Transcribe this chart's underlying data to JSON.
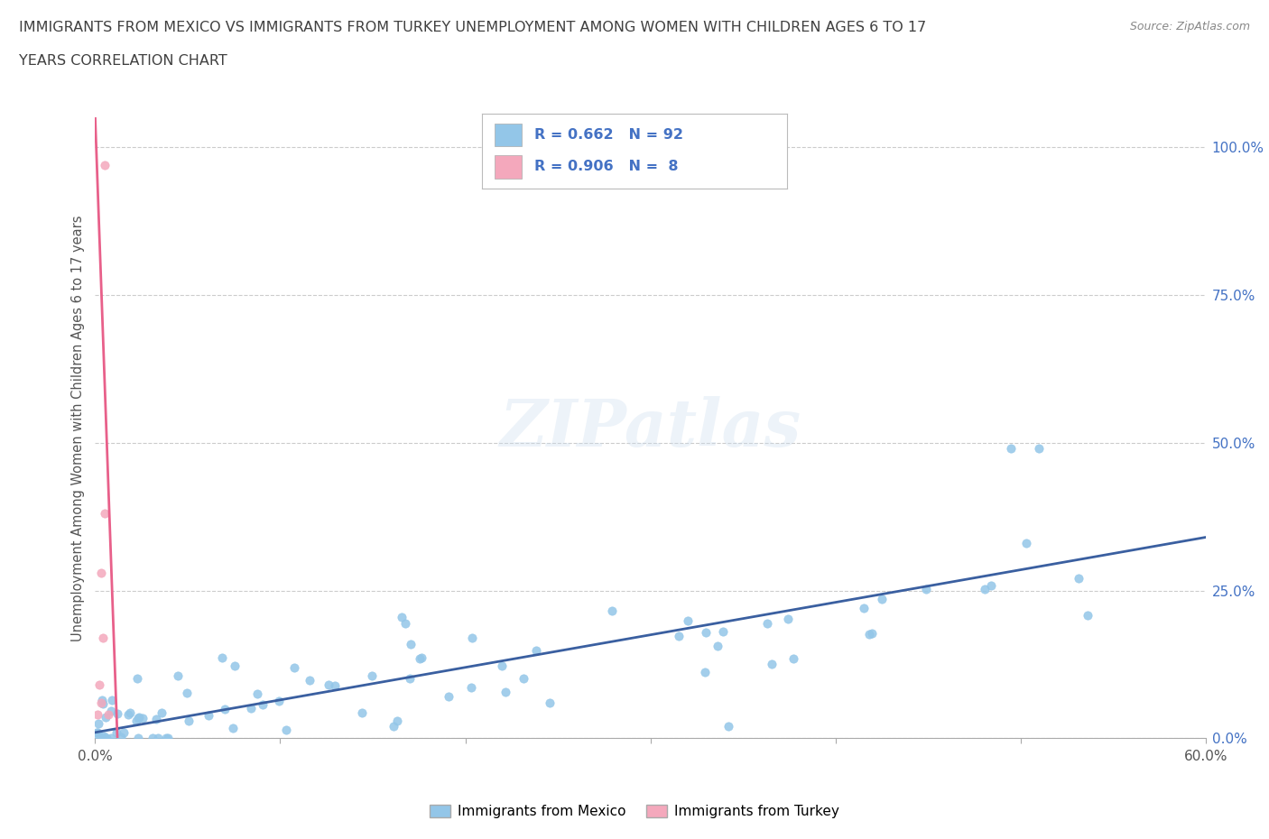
{
  "title_line1": "IMMIGRANTS FROM MEXICO VS IMMIGRANTS FROM TURKEY UNEMPLOYMENT AMONG WOMEN WITH CHILDREN AGES 6 TO 17",
  "title_line2": "YEARS CORRELATION CHART",
  "source_text": "Source: ZipAtlas.com",
  "ylabel": "Unemployment Among Women with Children Ages 6 to 17 years",
  "xlim": [
    0.0,
    0.6
  ],
  "ylim": [
    0.0,
    1.05
  ],
  "x_ticks": [
    0.0,
    0.1,
    0.2,
    0.3,
    0.4,
    0.5,
    0.6
  ],
  "x_tick_labels": [
    "0.0%",
    "",
    "",
    "",
    "",
    "",
    "60.0%"
  ],
  "y_tick_labels_right": [
    "0.0%",
    "25.0%",
    "50.0%",
    "75.0%",
    "100.0%"
  ],
  "y_tick_vals_right": [
    0.0,
    0.25,
    0.5,
    0.75,
    1.0
  ],
  "watermark": "ZIPatlas",
  "legend_mexico_R": "0.662",
  "legend_mexico_N": "92",
  "legend_turkey_R": "0.906",
  "legend_turkey_N": "8",
  "mexico_color": "#93C6E8",
  "turkey_color": "#F4A8BC",
  "mexico_line_color": "#3A5FA0",
  "turkey_line_color": "#E8608A",
  "background_color": "#FFFFFF",
  "grid_color": "#CCCCCC",
  "title_color": "#404040",
  "legend_text_color": "#4472C4",
  "turkey_scatter_x": [
    0.005,
    0.005,
    0.003,
    0.004,
    0.002,
    0.001,
    0.007,
    0.003
  ],
  "turkey_scatter_y": [
    0.97,
    0.38,
    0.28,
    0.17,
    0.09,
    0.04,
    0.04,
    0.06
  ],
  "mexico_trend_x0": 0.0,
  "mexico_trend_y0": 0.01,
  "mexico_trend_x1": 0.6,
  "mexico_trend_y1": 0.34,
  "turkey_trend_x0": 0.0,
  "turkey_trend_y0": 1.05,
  "turkey_trend_x1": 0.012,
  "turkey_trend_y1": 0.0
}
